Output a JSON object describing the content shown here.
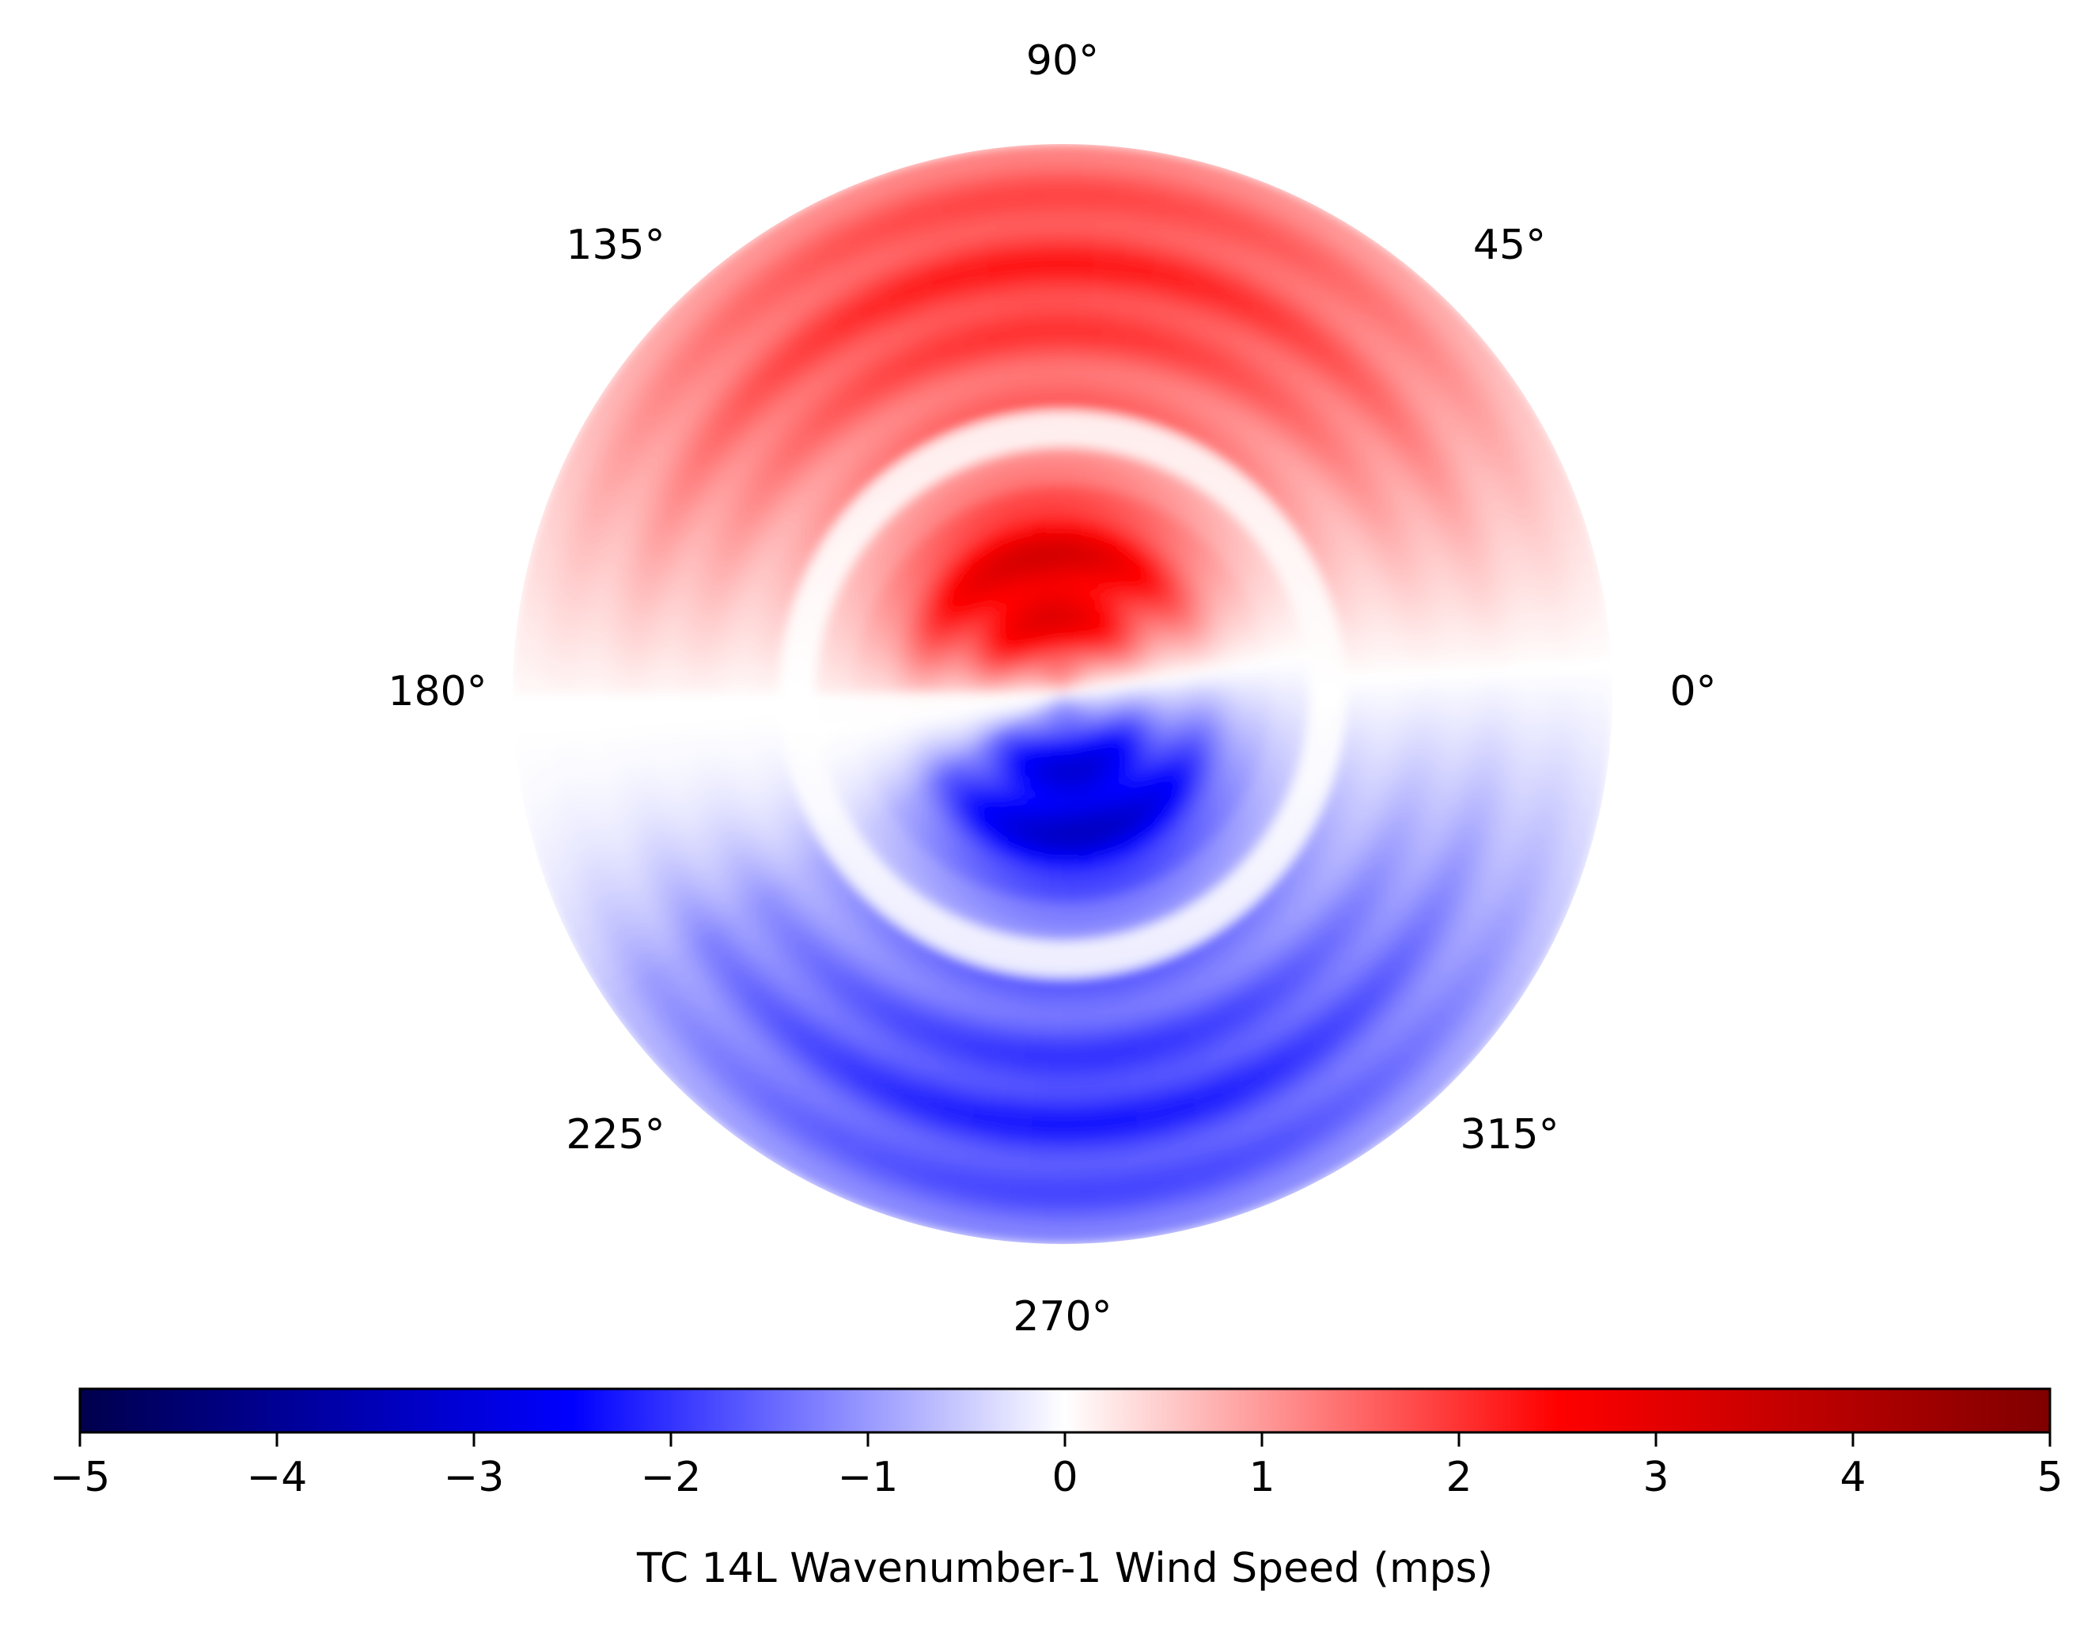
{
  "chart_data": {
    "type": "heatmap",
    "projection": "polar",
    "title": "",
    "colormap": "bwr",
    "theta_ticks_deg": [
      0,
      45,
      90,
      135,
      180,
      225,
      270,
      315
    ],
    "theta_labels": [
      "0°",
      "45°",
      "90°",
      "135°",
      "180°",
      "225°",
      "270°",
      "315°"
    ],
    "grid": false,
    "radial_tick_labels_visible": false,
    "field_description_values": {
      "inner_core_max": 3.5,
      "inner_core_min": -3.5,
      "outer_ring_north": 2.0,
      "outer_ring_south": -1.8,
      "lower_half_value_at_phase_wrap": 0
    },
    "colorbar": {
      "orientation": "horizontal",
      "location": "bottom",
      "vmin": -5,
      "vmax": 5,
      "ticks": [
        -5,
        -4,
        -3,
        -2,
        -1,
        0,
        1,
        2,
        3,
        4,
        5
      ],
      "tick_labels": [
        "−5",
        "−4",
        "−3",
        "−2",
        "−1",
        "0",
        "1",
        "2",
        "3",
        "4",
        "5"
      ],
      "label": "TC 14L Wavenumber-1 Wind Speed (mps)"
    }
  }
}
